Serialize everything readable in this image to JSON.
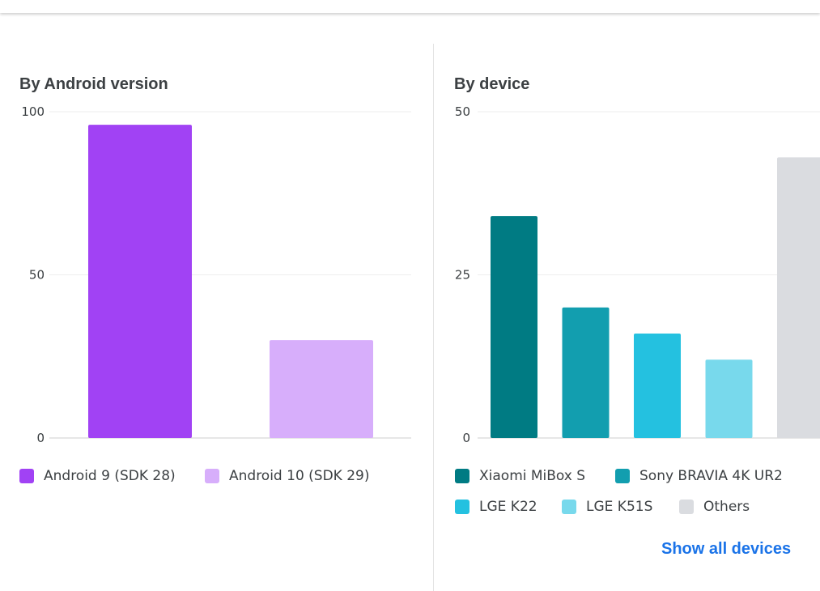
{
  "colors": {
    "android9": "#a142f4",
    "android10": "#d7aefb",
    "mibox": "#007b83",
    "bravia": "#129eaf",
    "k22": "#24c1e0",
    "k51s": "#78d9ec",
    "others": "#dadce0",
    "grid": "#eeeeee",
    "link": "#1a73e8"
  },
  "left_panel": {
    "title": "By Android version"
  },
  "right_panel": {
    "title": "By device",
    "show_all_label": "Show all devices"
  },
  "chart_data": [
    {
      "type": "bar",
      "title": "By Android version",
      "categories": [
        "Android 9 (SDK 28)",
        "Android 10 (SDK 29)"
      ],
      "values": [
        96,
        30
      ],
      "yticks": [
        "0",
        "50",
        "100"
      ],
      "ylim": [
        0,
        100
      ],
      "legend": [
        {
          "label": "Android 9 (SDK 28)",
          "color": "#a142f4"
        },
        {
          "label": "Android 10 (SDK 29)",
          "color": "#d7aefb"
        }
      ],
      "legend_position": "bottom",
      "grid": true
    },
    {
      "type": "bar",
      "title": "By device",
      "categories": [
        "Xiaomi MiBox S",
        "Sony BRAVIA 4K UR2",
        "LGE K22",
        "LGE K51S",
        "Others"
      ],
      "values": [
        34,
        20,
        16,
        12,
        43
      ],
      "yticks": [
        "0",
        "25",
        "50"
      ],
      "ylim": [
        0,
        50
      ],
      "legend": [
        {
          "label": "Xiaomi MiBox S",
          "color": "#007b83"
        },
        {
          "label": "Sony BRAVIA 4K UR2",
          "color": "#129eaf"
        },
        {
          "label": "LGE K22",
          "color": "#24c1e0"
        },
        {
          "label": "LGE K51S",
          "color": "#78d9ec"
        },
        {
          "label": "Others",
          "color": "#dadce0"
        }
      ],
      "legend_position": "bottom",
      "grid": true
    }
  ]
}
